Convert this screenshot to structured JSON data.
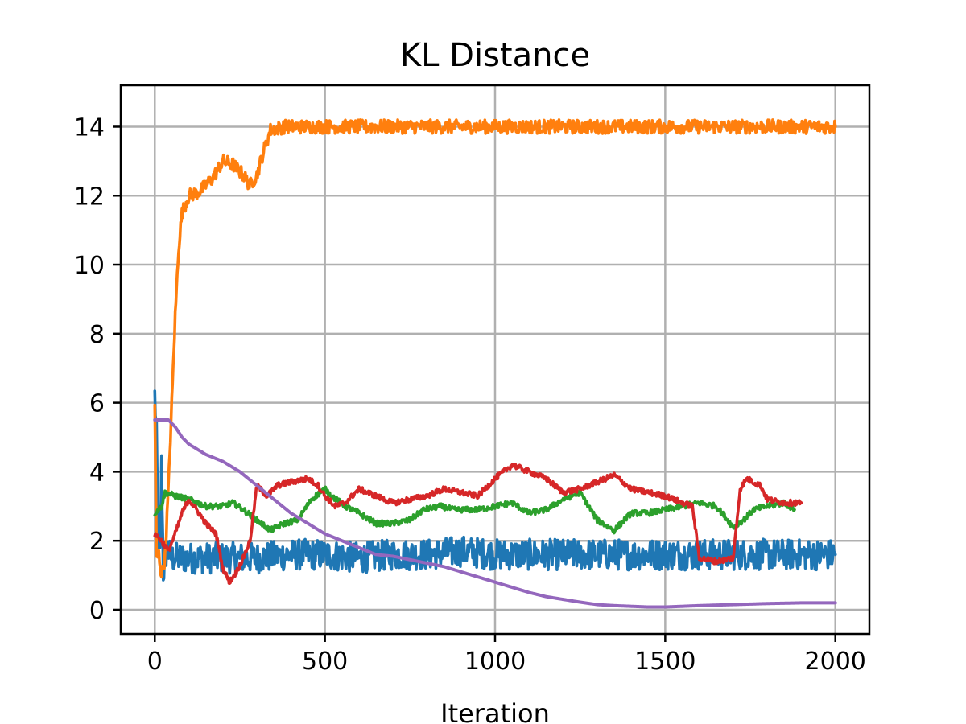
{
  "chart_data": {
    "type": "line",
    "title": "KL Distance",
    "xlabel": "Iteration",
    "ylabel": "",
    "xlim": [
      -100,
      2100
    ],
    "ylim": [
      -0.7,
      15.2
    ],
    "xticks": [
      0,
      500,
      1000,
      1500,
      2000
    ],
    "yticks": [
      0,
      2,
      4,
      6,
      8,
      10,
      12,
      14
    ],
    "grid": true,
    "legend": "none",
    "series": [
      {
        "color": "#1f77b4",
        "noise": 0.45,
        "points": [
          [
            0,
            6.2
          ],
          [
            5,
            5.0
          ],
          [
            10,
            2.0
          ],
          [
            15,
            1.5
          ],
          [
            20,
            4.2
          ],
          [
            25,
            1.1
          ],
          [
            30,
            1.3
          ],
          [
            35,
            1.8
          ],
          [
            50,
            1.5
          ],
          [
            100,
            1.5
          ],
          [
            200,
            1.5
          ],
          [
            300,
            1.5
          ],
          [
            400,
            1.6
          ],
          [
            500,
            1.6
          ],
          [
            600,
            1.5
          ],
          [
            700,
            1.6
          ],
          [
            800,
            1.6
          ],
          [
            900,
            1.7
          ],
          [
            1000,
            1.6
          ],
          [
            1100,
            1.6
          ],
          [
            1200,
            1.6
          ],
          [
            1300,
            1.6
          ],
          [
            1400,
            1.6
          ],
          [
            1500,
            1.6
          ],
          [
            1600,
            1.6
          ],
          [
            1700,
            1.6
          ],
          [
            1800,
            1.6
          ],
          [
            1900,
            1.6
          ],
          [
            2000,
            1.6
          ]
        ]
      },
      {
        "color": "#ff7f0e",
        "noise": 0.2,
        "points": [
          [
            0,
            6.0
          ],
          [
            5,
            1.5
          ],
          [
            12,
            1.6
          ],
          [
            20,
            1.0
          ],
          [
            30,
            1.5
          ],
          [
            40,
            3.5
          ],
          [
            50,
            6.0
          ],
          [
            60,
            8.5
          ],
          [
            70,
            10.5
          ],
          [
            80,
            11.5
          ],
          [
            100,
            12.0
          ],
          [
            130,
            12.1
          ],
          [
            170,
            12.5
          ],
          [
            200,
            13.0
          ],
          [
            230,
            12.9
          ],
          [
            260,
            12.6
          ],
          [
            280,
            12.3
          ],
          [
            300,
            12.6
          ],
          [
            320,
            13.3
          ],
          [
            340,
            13.9
          ],
          [
            380,
            14.0
          ],
          [
            500,
            14.0
          ],
          [
            1000,
            14.0
          ],
          [
            1500,
            14.0
          ],
          [
            2000,
            14.0
          ]
        ]
      },
      {
        "color": "#2ca02c",
        "noise": 0.08,
        "points": [
          [
            0,
            2.8
          ],
          [
            20,
            3.0
          ],
          [
            30,
            3.4
          ],
          [
            60,
            3.3
          ],
          [
            100,
            3.2
          ],
          [
            150,
            3.0
          ],
          [
            200,
            3.0
          ],
          [
            230,
            3.1
          ],
          [
            260,
            2.9
          ],
          [
            300,
            2.6
          ],
          [
            340,
            2.3
          ],
          [
            380,
            2.5
          ],
          [
            420,
            2.6
          ],
          [
            460,
            3.2
          ],
          [
            500,
            3.5
          ],
          [
            520,
            3.3
          ],
          [
            560,
            3.0
          ],
          [
            600,
            2.8
          ],
          [
            650,
            2.5
          ],
          [
            700,
            2.5
          ],
          [
            750,
            2.6
          ],
          [
            790,
            2.9
          ],
          [
            840,
            3.0
          ],
          [
            880,
            2.9
          ],
          [
            920,
            2.9
          ],
          [
            950,
            2.9
          ],
          [
            1000,
            3.0
          ],
          [
            1050,
            3.1
          ],
          [
            1100,
            2.8
          ],
          [
            1150,
            2.9
          ],
          [
            1200,
            3.2
          ],
          [
            1250,
            3.4
          ],
          [
            1300,
            2.6
          ],
          [
            1350,
            2.3
          ],
          [
            1400,
            2.8
          ],
          [
            1450,
            2.8
          ],
          [
            1500,
            2.9
          ],
          [
            1550,
            3.0
          ],
          [
            1600,
            3.1
          ],
          [
            1650,
            3.0
          ],
          [
            1700,
            2.4
          ],
          [
            1730,
            2.6
          ],
          [
            1760,
            2.9
          ],
          [
            1800,
            3.0
          ],
          [
            1850,
            3.1
          ],
          [
            1880,
            2.9
          ]
        ]
      },
      {
        "color": "#d62728",
        "noise": 0.08,
        "points": [
          [
            0,
            2.2
          ],
          [
            20,
            2.0
          ],
          [
            40,
            1.7
          ],
          [
            60,
            2.2
          ],
          [
            80,
            2.8
          ],
          [
            100,
            3.2
          ],
          [
            130,
            2.8
          ],
          [
            150,
            2.5
          ],
          [
            180,
            2.2
          ],
          [
            200,
            1.2
          ],
          [
            220,
            0.8
          ],
          [
            240,
            1.1
          ],
          [
            260,
            1.5
          ],
          [
            280,
            2.0
          ],
          [
            300,
            3.6
          ],
          [
            330,
            3.3
          ],
          [
            360,
            3.6
          ],
          [
            400,
            3.7
          ],
          [
            450,
            3.8
          ],
          [
            480,
            3.6
          ],
          [
            500,
            3.3
          ],
          [
            530,
            3.0
          ],
          [
            560,
            3.1
          ],
          [
            600,
            3.5
          ],
          [
            650,
            3.3
          ],
          [
            700,
            3.1
          ],
          [
            750,
            3.2
          ],
          [
            800,
            3.3
          ],
          [
            850,
            3.5
          ],
          [
            900,
            3.4
          ],
          [
            950,
            3.3
          ],
          [
            1000,
            3.8
          ],
          [
            1050,
            4.2
          ],
          [
            1100,
            4.0
          ],
          [
            1150,
            3.8
          ],
          [
            1200,
            3.4
          ],
          [
            1250,
            3.5
          ],
          [
            1300,
            3.7
          ],
          [
            1350,
            3.9
          ],
          [
            1400,
            3.5
          ],
          [
            1450,
            3.4
          ],
          [
            1500,
            3.3
          ],
          [
            1550,
            3.1
          ],
          [
            1580,
            3.0
          ],
          [
            1600,
            1.5
          ],
          [
            1650,
            1.4
          ],
          [
            1700,
            1.5
          ],
          [
            1720,
            3.5
          ],
          [
            1740,
            3.8
          ],
          [
            1780,
            3.6
          ],
          [
            1800,
            3.2
          ],
          [
            1850,
            3.1
          ],
          [
            1900,
            3.1
          ]
        ]
      },
      {
        "color": "#9467bd",
        "noise": 0,
        "points": [
          [
            0,
            5.5
          ],
          [
            20,
            5.5
          ],
          [
            40,
            5.5
          ],
          [
            60,
            5.3
          ],
          [
            80,
            5.0
          ],
          [
            100,
            4.8
          ],
          [
            150,
            4.5
          ],
          [
            200,
            4.3
          ],
          [
            250,
            4.0
          ],
          [
            300,
            3.6
          ],
          [
            350,
            3.2
          ],
          [
            400,
            2.8
          ],
          [
            450,
            2.5
          ],
          [
            500,
            2.2
          ],
          [
            550,
            2.0
          ],
          [
            600,
            1.8
          ],
          [
            650,
            1.6
          ],
          [
            700,
            1.55
          ],
          [
            750,
            1.45
          ],
          [
            800,
            1.35
          ],
          [
            850,
            1.25
          ],
          [
            900,
            1.1
          ],
          [
            950,
            0.95
          ],
          [
            1000,
            0.8
          ],
          [
            1050,
            0.65
          ],
          [
            1100,
            0.5
          ],
          [
            1150,
            0.38
          ],
          [
            1200,
            0.3
          ],
          [
            1250,
            0.22
          ],
          [
            1300,
            0.15
          ],
          [
            1350,
            0.12
          ],
          [
            1400,
            0.1
          ],
          [
            1450,
            0.08
          ],
          [
            1500,
            0.08
          ],
          [
            1550,
            0.1
          ],
          [
            1600,
            0.12
          ],
          [
            1700,
            0.15
          ],
          [
            1800,
            0.18
          ],
          [
            1900,
            0.2
          ],
          [
            2000,
            0.2
          ]
        ]
      }
    ]
  }
}
